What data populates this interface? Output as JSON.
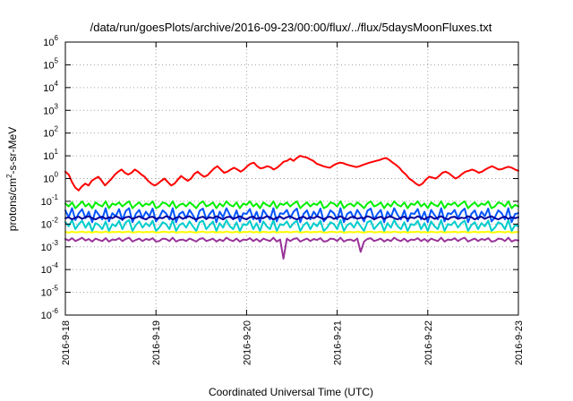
{
  "title": "/data/run/goesPlots/archive/2016-09-23/00:00/flux/../flux/5daysMoonFluxes.txt",
  "chart_data": {
    "type": "line",
    "title": "/data/run/goesPlots/archive/2016-09-23/00:00/flux/../flux/5daysMoonFluxes.txt",
    "xlabel": "Coordinated Universal Time (UTC)",
    "ylabel": {
      "base": "protons/cm",
      "sup": "2",
      "rest": "-s-sr-MeV"
    },
    "y_scale": "log",
    "ylim": [
      1e-06,
      1000000.0
    ],
    "y_ticks": [
      {
        "exp": -6,
        "label": "10",
        "sup": "-6"
      },
      {
        "exp": -5,
        "label": "10",
        "sup": "-5"
      },
      {
        "exp": -4,
        "label": "10",
        "sup": "-4"
      },
      {
        "exp": -3,
        "label": "10",
        "sup": "-3"
      },
      {
        "exp": -2,
        "label": "10",
        "sup": "-2"
      },
      {
        "exp": -1,
        "label": "10",
        "sup": "-1"
      },
      {
        "exp": 0,
        "label": "10",
        "sup": "0"
      },
      {
        "exp": 1,
        "label": "10",
        "sup": "1"
      },
      {
        "exp": 2,
        "label": "10",
        "sup": "2"
      },
      {
        "exp": 3,
        "label": "10",
        "sup": "3"
      },
      {
        "exp": 4,
        "label": "10",
        "sup": "4"
      },
      {
        "exp": 5,
        "label": "10",
        "sup": "5"
      },
      {
        "exp": 6,
        "label": "10",
        "sup": "6"
      }
    ],
    "x_ticks": [
      "2016-9-18",
      "2016-9-19",
      "2016-9-20",
      "2016-9-21",
      "2016-9-22",
      "2016-9-23"
    ],
    "xlim": [
      "2016-09-18T00:00",
      "2016-09-23T00:00"
    ],
    "grid": true,
    "series": [
      {
        "color": "#ff0000",
        "values": [
          2.0,
          1.5,
          0.7,
          0.4,
          0.3,
          0.45,
          0.6,
          0.5,
          0.8,
          1.0,
          1.2,
          0.8,
          0.5,
          0.7,
          1.0,
          1.5,
          2.0,
          2.5,
          1.8,
          1.5,
          1.8,
          2.5,
          2.0,
          1.5,
          1.2,
          0.8,
          0.6,
          0.5,
          0.6,
          0.8,
          1.0,
          0.7,
          0.5,
          0.6,
          0.9,
          1.3,
          1.0,
          0.8,
          1.0,
          1.6,
          2.0,
          1.5,
          1.2,
          1.4,
          2.0,
          2.8,
          3.5,
          2.5,
          1.8,
          2.0,
          2.5,
          3.0,
          2.5,
          2.0,
          2.5,
          3.5,
          4.5,
          5.0,
          3.5,
          2.8,
          3.0,
          3.5,
          3.2,
          2.5,
          3.0,
          4.0,
          5.5,
          6.0,
          7.5,
          6.0,
          8.0,
          10.0,
          9.0,
          8.5,
          7.0,
          6.0,
          4.5,
          4.0,
          3.5,
          3.2,
          3.0,
          3.8,
          4.5,
          5.0,
          4.8,
          4.2,
          3.8,
          3.5,
          3.2,
          3.5,
          4.0,
          4.5,
          5.0,
          5.5,
          6.0,
          6.5,
          7.5,
          8.0,
          6.5,
          5.0,
          4.0,
          3.0,
          2.0,
          1.5,
          1.0,
          0.8,
          0.6,
          0.5,
          0.6,
          0.9,
          1.2,
          1.1,
          1.0,
          1.3,
          1.8,
          2.0,
          1.7,
          1.3,
          1.0,
          1.2,
          1.6,
          2.0,
          2.2,
          2.5,
          2.2,
          1.8,
          2.0,
          2.5,
          3.0,
          3.5,
          3.0,
          2.5,
          2.6,
          3.0,
          3.3,
          3.0,
          2.5,
          2.2
        ]
      },
      {
        "color": "#00ee00",
        "values": [
          0.08,
          0.06,
          0.09,
          0.05,
          0.07,
          0.1,
          0.06,
          0.08,
          0.05,
          0.09,
          0.07,
          0.06,
          0.1,
          0.05,
          0.08,
          0.07,
          0.09,
          0.06,
          0.08,
          0.1,
          0.05,
          0.07,
          0.09,
          0.06,
          0.08,
          0.07,
          0.1,
          0.05,
          0.06,
          0.09,
          0.08,
          0.06,
          0.1,
          0.05,
          0.07,
          0.08,
          0.06,
          0.09,
          0.07,
          0.05,
          0.08,
          0.1,
          0.06,
          0.07,
          0.09,
          0.05,
          0.08,
          0.06,
          0.1,
          0.07,
          0.06,
          0.09,
          0.05,
          0.08,
          0.07,
          0.1,
          0.06,
          0.08,
          0.05,
          0.09,
          0.07,
          0.06,
          0.1,
          0.05,
          0.08,
          0.07,
          0.09,
          0.06,
          0.08,
          0.1,
          0.05,
          0.07,
          0.09,
          0.06,
          0.08,
          0.07,
          0.1,
          0.05,
          0.06,
          0.09,
          0.08,
          0.06,
          0.1,
          0.05,
          0.07,
          0.08,
          0.06,
          0.09,
          0.07,
          0.05,
          0.08,
          0.1,
          0.06,
          0.07,
          0.09,
          0.05,
          0.08,
          0.06,
          0.1,
          0.07,
          0.06,
          0.09,
          0.05,
          0.08,
          0.07,
          0.1,
          0.06,
          0.08,
          0.05,
          0.09,
          0.07,
          0.06,
          0.1,
          0.05,
          0.08,
          0.07,
          0.09,
          0.06,
          0.08,
          0.1,
          0.05,
          0.07,
          0.09,
          0.06,
          0.08,
          0.07,
          0.1,
          0.05,
          0.06,
          0.09,
          0.08,
          0.06,
          0.1,
          0.05,
          0.07,
          0.06
        ]
      },
      {
        "color": "#00cccc",
        "values": [
          0.012,
          0.008,
          0.015,
          0.006,
          0.01,
          0.014,
          0.007,
          0.012,
          0.005,
          0.011,
          0.009,
          0.006,
          0.013,
          0.005,
          0.01,
          0.008,
          0.014,
          0.006,
          0.012,
          0.015,
          0.005,
          0.009,
          0.013,
          0.007,
          0.011,
          0.008,
          0.014,
          0.005,
          0.007,
          0.012,
          0.01,
          0.006,
          0.015,
          0.005,
          0.009,
          0.011,
          0.007,
          0.013,
          0.008,
          0.005,
          0.012,
          0.014,
          0.006,
          0.009,
          0.013,
          0.005,
          0.011,
          0.007,
          0.015,
          0.008,
          0.006,
          0.012,
          0.005,
          0.01,
          0.009,
          0.014,
          0.006,
          0.011,
          0.005,
          0.013,
          0.008,
          0.006,
          0.015,
          0.005,
          0.01,
          0.009,
          0.013,
          0.007,
          0.011,
          0.014,
          0.005,
          0.009,
          0.012,
          0.006,
          0.011,
          0.008,
          0.014,
          0.005,
          0.007,
          0.012,
          0.01,
          0.006,
          0.015,
          0.005,
          0.009,
          0.011,
          0.007,
          0.013,
          0.008,
          0.005,
          0.012,
          0.014,
          0.006,
          0.009,
          0.013,
          0.005,
          0.011,
          0.007,
          0.015,
          0.008,
          0.006,
          0.012,
          0.005,
          0.01,
          0.009,
          0.014,
          0.006,
          0.011,
          0.005,
          0.013,
          0.008,
          0.006,
          0.015,
          0.005,
          0.01,
          0.009,
          0.013,
          0.007,
          0.011,
          0.014,
          0.005,
          0.009,
          0.012,
          0.006,
          0.011,
          0.008,
          0.014,
          0.005,
          0.007,
          0.012,
          0.01,
          0.006,
          0.015,
          0.005,
          0.009,
          0.008
        ]
      },
      {
        "color": "#0055ff",
        "values": [
          0.04,
          0.02,
          0.05,
          0.015,
          0.03,
          0.045,
          0.018,
          0.035,
          0.012,
          0.04,
          0.025,
          0.016,
          0.05,
          0.013,
          0.03,
          0.022,
          0.045,
          0.015,
          0.038,
          0.05,
          0.012,
          0.028,
          0.042,
          0.018,
          0.035,
          0.022,
          0.048,
          0.013,
          0.02,
          0.04,
          0.03,
          0.016,
          0.05,
          0.012,
          0.028,
          0.035,
          0.018,
          0.042,
          0.025,
          0.013,
          0.038,
          0.048,
          0.016,
          0.028,
          0.042,
          0.012,
          0.035,
          0.02,
          0.05,
          0.025,
          0.016,
          0.04,
          0.013,
          0.03,
          0.028,
          0.046,
          0.016,
          0.035,
          0.012,
          0.042,
          0.025,
          0.016,
          0.05,
          0.013,
          0.03,
          0.028,
          0.042,
          0.018,
          0.035,
          0.048,
          0.012,
          0.028,
          0.04,
          0.016,
          0.035,
          0.022,
          0.048,
          0.013,
          0.02,
          0.04,
          0.03,
          0.016,
          0.05,
          0.012,
          0.028,
          0.035,
          0.018,
          0.042,
          0.025,
          0.013,
          0.038,
          0.048,
          0.016,
          0.028,
          0.042,
          0.012,
          0.035,
          0.02,
          0.05,
          0.025,
          0.016,
          0.04,
          0.013,
          0.03,
          0.028,
          0.046,
          0.016,
          0.035,
          0.012,
          0.042,
          0.025,
          0.016,
          0.05,
          0.013,
          0.03,
          0.028,
          0.042,
          0.018,
          0.035,
          0.048,
          0.012,
          0.028,
          0.04,
          0.016,
          0.035,
          0.022,
          0.048,
          0.013,
          0.02,
          0.04,
          0.03,
          0.016,
          0.05,
          0.012,
          0.028,
          0.03
        ]
      },
      {
        "color": "#000099",
        "values": [
          0.018,
          0.02,
          0.016,
          0.019,
          0.021,
          0.017,
          0.02,
          0.022,
          0.018,
          0.016,
          0.019,
          0.021,
          0.017,
          0.02,
          0.018,
          0.022,
          0.019,
          0.016,
          0.02,
          0.021,
          0.017,
          0.019,
          0.022,
          0.018,
          0.016,
          0.02,
          0.021,
          0.017,
          0.019,
          0.018,
          0.022,
          0.02,
          0.016,
          0.019,
          0.021,
          0.017,
          0.02,
          0.022,
          0.018,
          0.016,
          0.019,
          0.021,
          0.017,
          0.02,
          0.018,
          0.022,
          0.019,
          0.016,
          0.02,
          0.021,
          0.017,
          0.019,
          0.022,
          0.018,
          0.016,
          0.02,
          0.021,
          0.017,
          0.019,
          0.018,
          0.022,
          0.02,
          0.016,
          0.019,
          0.021,
          0.017,
          0.02,
          0.022,
          0.018,
          0.016,
          0.019,
          0.021,
          0.017,
          0.02,
          0.018,
          0.022,
          0.019,
          0.016,
          0.02,
          0.021,
          0.017,
          0.019,
          0.022,
          0.018,
          0.016,
          0.02,
          0.021,
          0.017,
          0.019,
          0.018,
          0.022,
          0.02,
          0.016,
          0.019,
          0.021,
          0.017,
          0.02,
          0.022,
          0.018,
          0.016,
          0.019,
          0.021,
          0.017,
          0.02,
          0.018,
          0.022,
          0.019,
          0.016,
          0.02,
          0.021,
          0.017,
          0.019,
          0.022,
          0.018,
          0.016,
          0.02,
          0.021,
          0.017,
          0.019,
          0.018,
          0.022,
          0.02,
          0.016,
          0.019,
          0.021,
          0.017,
          0.02,
          0.022,
          0.018,
          0.016,
          0.019,
          0.021,
          0.017,
          0.02,
          0.018,
          0.02
        ]
      },
      {
        "color": "#ffff00",
        "values": [
          0.0045,
          0.0042,
          0.0046,
          0.0043,
          0.0044,
          0.0047,
          0.0043,
          0.0045,
          0.0042,
          0.0046,
          0.0044,
          0.0043,
          0.0047,
          0.0042,
          0.0045,
          0.0044,
          0.0046,
          0.0043,
          0.0045,
          0.0047,
          0.0042,
          0.0044,
          0.0046,
          0.0043,
          0.0045,
          0.0044,
          0.0047,
          0.0042,
          0.0043,
          0.0046,
          0.0045,
          0.0043,
          0.0047,
          0.0042,
          0.0044,
          0.0045,
          0.0043,
          0.0046,
          0.0044,
          0.0042,
          0.0045,
          0.0047,
          0.0043,
          0.0044,
          0.0046,
          0.0042,
          0.0045,
          0.0043,
          0.0047,
          0.0044,
          0.0043,
          0.0046,
          0.0042,
          0.0045,
          0.0044,
          0.0047,
          0.0043,
          0.0045,
          0.0042,
          0.0046,
          0.0044,
          0.0043,
          0.0047,
          0.0042,
          0.0045,
          0.0044,
          0.0046,
          0.0043,
          0.0045,
          0.0047,
          0.0042,
          0.0044,
          0.0046,
          0.0043,
          0.0045,
          0.0044,
          0.0047,
          0.0042,
          0.0043,
          0.0046,
          0.0045,
          0.0043,
          0.0047,
          0.0042,
          0.0044,
          0.0045,
          0.0043,
          0.0046,
          0.0044,
          0.0042,
          0.0045,
          0.0047,
          0.0043,
          0.0044,
          0.0046,
          0.0042,
          0.0045,
          0.0043,
          0.0047,
          0.0044,
          0.0043,
          0.0046,
          0.0042,
          0.0045,
          0.0044,
          0.0047,
          0.0043,
          0.0045,
          0.0042,
          0.0046,
          0.0044,
          0.0043,
          0.0047,
          0.0042,
          0.0045,
          0.0044,
          0.0046,
          0.0043,
          0.0045,
          0.0047,
          0.0042,
          0.0044,
          0.0046,
          0.0043,
          0.0045,
          0.0044,
          0.0047,
          0.0042,
          0.0043,
          0.0046,
          0.0045,
          0.0043,
          0.0047,
          0.0042,
          0.0044,
          0.0045
        ]
      },
      {
        "color": "#993399",
        "values": [
          0.0022,
          0.0019,
          0.0024,
          0.0018,
          0.0021,
          0.0025,
          0.0019,
          0.0022,
          0.0017,
          0.0023,
          0.002,
          0.0018,
          0.0024,
          0.0017,
          0.0021,
          0.002,
          0.0024,
          0.0018,
          0.0022,
          0.0025,
          0.0017,
          0.002,
          0.0023,
          0.0018,
          0.0022,
          0.002,
          0.0024,
          0.0017,
          0.0018,
          0.0023,
          0.0022,
          0.0018,
          0.0025,
          0.0017,
          0.002,
          0.0021,
          0.0018,
          0.0023,
          0.002,
          0.0017,
          0.0022,
          0.0024,
          0.0018,
          0.002,
          0.0023,
          0.0017,
          0.0021,
          0.0018,
          0.0025,
          0.002,
          0.0018,
          0.0023,
          0.0017,
          0.0021,
          0.002,
          0.0024,
          0.0018,
          0.0022,
          0.0017,
          0.0023,
          0.002,
          0.0018,
          0.0025,
          0.0017,
          0.0021,
          0.0003,
          0.0023,
          0.0018,
          0.0022,
          0.0024,
          0.0017,
          0.002,
          0.0023,
          0.0018,
          0.0022,
          0.002,
          0.0024,
          0.0017,
          0.0018,
          0.0023,
          0.0022,
          0.0018,
          0.0025,
          0.0017,
          0.002,
          0.0021,
          0.0018,
          0.0023,
          0.0006,
          0.0017,
          0.0022,
          0.0024,
          0.0018,
          0.002,
          0.0023,
          0.0017,
          0.0021,
          0.0018,
          0.0025,
          0.002,
          0.0018,
          0.0023,
          0.0017,
          0.0021,
          0.002,
          0.0024,
          0.0018,
          0.0022,
          0.0017,
          0.0023,
          0.002,
          0.0018,
          0.0025,
          0.0017,
          0.0021,
          0.002,
          0.0024,
          0.0018,
          0.0022,
          0.0025,
          0.0017,
          0.002,
          0.0023,
          0.0018,
          0.0022,
          0.002,
          0.0024,
          0.0017,
          0.0018,
          0.0023,
          0.0022,
          0.0018,
          0.0025,
          0.0017,
          0.002,
          0.0019
        ]
      }
    ]
  }
}
